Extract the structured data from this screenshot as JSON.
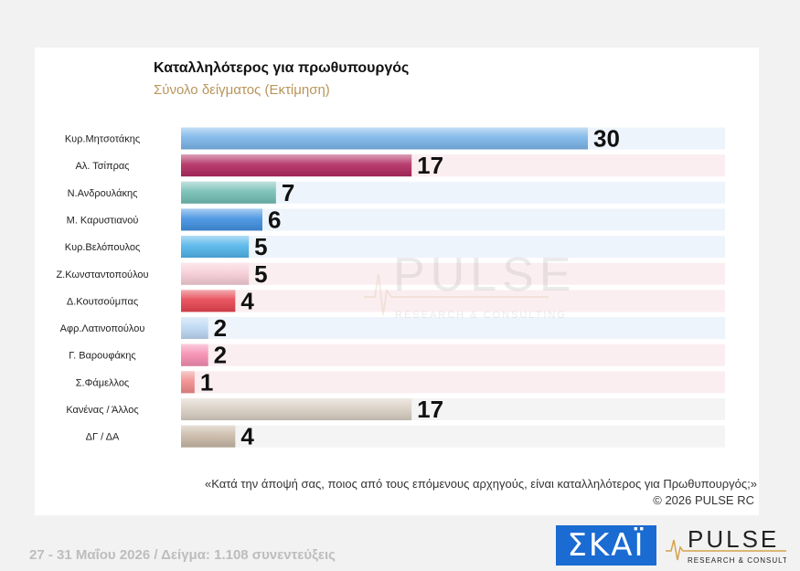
{
  "header": {
    "title": "Καταλληλότερος για πρωθυπουργός",
    "subtitle": "Σύνολο δείγματος  (Εκτίμηση)"
  },
  "chart_data": {
    "type": "bar",
    "orientation": "horizontal",
    "categories": [
      "Κυρ.Μητσοτάκης",
      "Αλ. Τσίπρας",
      "Ν.Ανδρουλάκης",
      "Μ. Καρυστιανού",
      "Κυρ.Βελόπουλος",
      "Ζ.Κωνσταντοπούλου",
      "Δ.Κουτσούμπας",
      "Αφρ.Λατινοπούλου",
      "Γ. Βαρουφάκης",
      "Σ.Φάμελλος",
      "Κανένας / Άλλος",
      "ΔΓ / ΔΑ"
    ],
    "values": [
      30,
      17,
      7,
      6,
      5,
      5,
      4,
      2,
      2,
      1,
      17,
      4
    ],
    "colors": [
      "#7ab4e8",
      "#b0295e",
      "#72bdb3",
      "#3f8fe0",
      "#4fb3ea",
      "#f6ccd6",
      "#e6434f",
      "#bcd7f3",
      "#f58bb0",
      "#f08a8a",
      "#d8cfc2",
      "#c8b8a6"
    ],
    "row_colors": [
      "#eef4fb",
      "#fbeef1",
      "#eef4fb",
      "#eef4fb",
      "#eef4fb",
      "#fbeef1",
      "#fbeef1",
      "#eef4fb",
      "#fbeef1",
      "#fbeef1",
      "#f4f4f4",
      "#f4f4f4"
    ],
    "xlim": [
      0,
      40
    ],
    "grid": false,
    "legend": "none"
  },
  "watermark": {
    "brand": "PULSE",
    "tagline": "RESEARCH & CONSULTING"
  },
  "question": "«Κατά την άποψή σας, ποιος από τους επόμενους αρχηγούς, είναι καταλληλότερος για Πρωθυπουργός;»",
  "copyright": "©  2026  PULSE RC",
  "footer": "27 - 31  Μαΐου 2026  /  Δείγμα:  1.108 συνεντεύξεις",
  "logos": {
    "skai": "ΣΚΑΪ",
    "pulse": "PULSE",
    "pulse_tagline": "RESEARCH & CONSULTING"
  }
}
